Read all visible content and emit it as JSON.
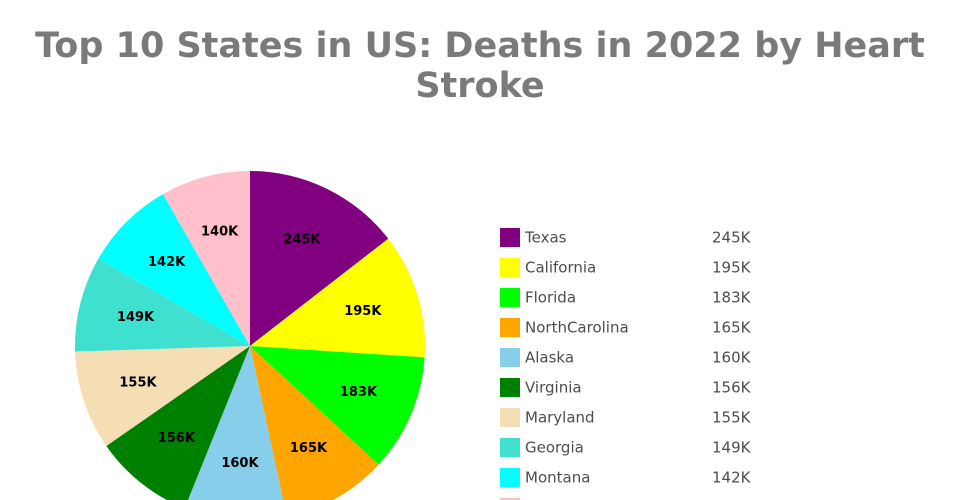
{
  "chart_data": {
    "type": "pie",
    "title": "Top 10 States in US: Deaths in 2022 by Heart Stroke",
    "legend_position": "right",
    "slices": [
      {
        "label": "Texas",
        "value": 245000,
        "display": "245K",
        "color": "#800080"
      },
      {
        "label": "California",
        "value": 195000,
        "display": "195K",
        "color": "#ffff00"
      },
      {
        "label": "Florida",
        "value": 183000,
        "display": "183K",
        "color": "#00ff00"
      },
      {
        "label": "NorthCarolina",
        "value": 165000,
        "display": "165K",
        "color": "#ffa500"
      },
      {
        "label": "Alaska",
        "value": 160000,
        "display": "160K",
        "color": "#87ceeb"
      },
      {
        "label": "Virginia",
        "value": 156000,
        "display": "156K",
        "color": "#008000"
      },
      {
        "label": "Maryland",
        "value": 155000,
        "display": "155K",
        "color": "#f5deb3"
      },
      {
        "label": "Georgia",
        "value": 149000,
        "display": "149K",
        "color": "#40e0d0"
      },
      {
        "label": "Montana",
        "value": 142000,
        "display": "142K",
        "color": "#00ffff"
      },
      {
        "label": "",
        "value": 140000,
        "display": "140K",
        "color": "#ffc0cb"
      }
    ]
  }
}
